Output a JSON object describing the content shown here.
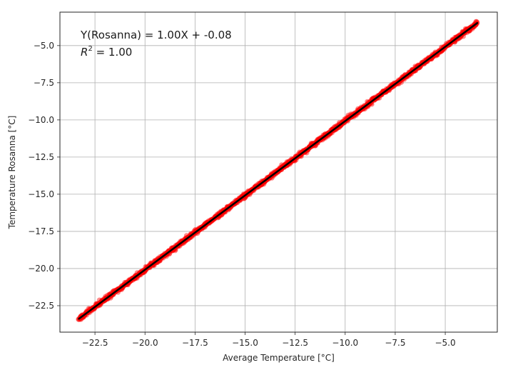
{
  "chart_data": {
    "type": "scatter",
    "title": "",
    "xlabel": "Average Temperature [°C]",
    "ylabel": "Temperature Rosanna [°C]",
    "xlim": [
      -24.25,
      -2.4
    ],
    "ylim": [
      -24.28,
      -2.75
    ],
    "xticks": [
      -22.5,
      -20.0,
      -17.5,
      -15.0,
      -12.5,
      -10.0,
      -7.5,
      -5.0
    ],
    "xtick_labels": [
      "−22.5",
      "−20.0",
      "−17.5",
      "−15.0",
      "−12.5",
      "−10.0",
      "−7.5",
      "−5.0"
    ],
    "yticks": [
      -22.5,
      -20.0,
      -17.5,
      -15.0,
      -12.5,
      -10.0,
      -7.5,
      -5.0
    ],
    "ytick_labels": [
      "−22.5",
      "−20.0",
      "−17.5",
      "−15.0",
      "−12.5",
      "−10.0",
      "−7.5",
      "−5.0"
    ],
    "grid": true,
    "point_color": "#ff0000",
    "line_color": "#000000",
    "point_x_range": [
      -23.3,
      -3.4
    ],
    "fit": {
      "slope": 1.0,
      "intercept": -0.08
    },
    "annotations": {
      "equation": "Y(Rosanna) = 1.00X + -0.08",
      "r2_symbol": "R",
      "r2_exponent": "2",
      "r2_value": " = 1.00"
    }
  }
}
